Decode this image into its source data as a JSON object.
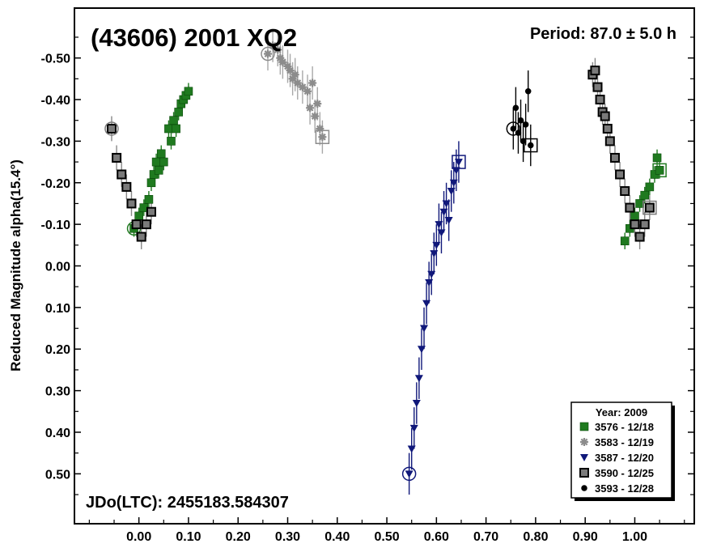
{
  "chart_data": {
    "type": "scatter",
    "title": "(43606) 2001 XQ2",
    "period_label": "Period: 87.0 ± 5.0 h",
    "jd_label": "JDo(LTC): 2455183.584307",
    "ylabel": "Reduced Magnitude alpha(15.4°)",
    "xlabel": "",
    "xlim": [
      -0.13,
      1.12
    ],
    "ylim": [
      0.62,
      -0.62
    ],
    "y_inverted": true,
    "x_ticks": [
      0.0,
      0.1,
      0.2,
      0.3,
      0.4,
      0.5,
      0.6,
      0.7,
      0.8,
      0.9,
      1.0
    ],
    "x_tick_labels": [
      "0.00",
      "0.10",
      "0.20",
      "0.30",
      "0.40",
      "0.50",
      "0.60",
      "0.70",
      "0.80",
      "0.90",
      "1.00"
    ],
    "y_ticks": [
      -0.5,
      -0.4,
      -0.3,
      -0.2,
      -0.1,
      0.0,
      0.1,
      0.2,
      0.3,
      0.4,
      0.5
    ],
    "y_tick_labels": [
      "-0.50",
      "-0.40",
      "-0.30",
      "-0.20",
      "-0.10",
      "0.00",
      "0.10",
      "0.20",
      "0.30",
      "0.40",
      "0.50"
    ],
    "grid": false,
    "legend": {
      "title": "Year: 2009",
      "position": "bottom-right",
      "entries": [
        "3576 - 12/18",
        "3583 - 12/19",
        "3587 - 12/20",
        "3590 - 12/25",
        "3593 - 12/28"
      ]
    },
    "series": [
      {
        "name": "3576 - 12/18",
        "color": "#1f7a1f",
        "marker": "square-filled",
        "x": [
          -0.01,
          0.0,
          0.01,
          0.02,
          0.025,
          0.03,
          0.035,
          0.04,
          0.045,
          0.05,
          0.06,
          0.065,
          0.07,
          0.075,
          0.08,
          0.085,
          0.09,
          0.095,
          0.1,
          0.98,
          0.99,
          1.0,
          1.01,
          1.02,
          1.03,
          1.04,
          1.045,
          1.05
        ],
        "y": [
          -0.09,
          -0.12,
          -0.14,
          -0.16,
          -0.2,
          -0.22,
          -0.25,
          -0.23,
          -0.27,
          -0.25,
          -0.33,
          -0.3,
          -0.35,
          -0.33,
          -0.37,
          -0.39,
          -0.4,
          -0.41,
          -0.42,
          -0.06,
          -0.09,
          -0.12,
          -0.15,
          -0.17,
          -0.19,
          -0.22,
          -0.26,
          -0.23
        ],
        "err": 0.02
      },
      {
        "name": "3583 - 12/19",
        "color": "#8c8c8c",
        "marker": "asterisk",
        "x": [
          0.26,
          0.27,
          0.28,
          0.285,
          0.29,
          0.3,
          0.305,
          0.31,
          0.315,
          0.32,
          0.33,
          0.34,
          0.345,
          0.35,
          0.355,
          0.36,
          0.365,
          0.37
        ],
        "y": [
          -0.51,
          -0.53,
          -0.52,
          -0.5,
          -0.49,
          -0.48,
          -0.47,
          -0.45,
          -0.46,
          -0.44,
          -0.43,
          -0.42,
          -0.38,
          -0.44,
          -0.36,
          -0.39,
          -0.33,
          -0.31
        ],
        "err": 0.04
      },
      {
        "name": "3587 - 12/20",
        "color": "#10187a",
        "marker": "triangle-down",
        "x": [
          0.545,
          0.55,
          0.555,
          0.56,
          0.565,
          0.57,
          0.575,
          0.58,
          0.585,
          0.59,
          0.595,
          0.6,
          0.605,
          0.61,
          0.615,
          0.62,
          0.625,
          0.63,
          0.635,
          0.64,
          0.645
        ],
        "y": [
          0.5,
          0.44,
          0.39,
          0.33,
          0.27,
          0.2,
          0.15,
          0.09,
          0.04,
          0.02,
          -0.03,
          -0.05,
          -0.1,
          -0.08,
          -0.13,
          -0.15,
          -0.11,
          -0.18,
          -0.2,
          -0.23,
          -0.25
        ],
        "err": 0.05
      },
      {
        "name": "3590 - 12/25",
        "color": "#7a7a7a",
        "marker": "square-gray",
        "x": [
          -0.055,
          -0.045,
          -0.035,
          -0.025,
          -0.015,
          -0.005,
          0.005,
          0.015,
          0.025,
          0.915,
          0.92,
          0.925,
          0.93,
          0.935,
          0.94,
          0.945,
          0.95,
          0.96,
          0.97,
          0.98,
          0.99,
          1.0,
          1.01,
          1.02,
          1.03
        ],
        "y": [
          -0.33,
          -0.26,
          -0.22,
          -0.19,
          -0.15,
          -0.1,
          -0.07,
          -0.1,
          -0.13,
          -0.46,
          -0.47,
          -0.43,
          -0.4,
          -0.37,
          -0.36,
          -0.33,
          -0.3,
          -0.26,
          -0.22,
          -0.18,
          -0.14,
          -0.1,
          -0.07,
          -0.1,
          -0.14
        ],
        "err": 0.03
      },
      {
        "name": "3593 - 12/28",
        "color": "#000000",
        "marker": "circle-filled",
        "x": [
          0.755,
          0.76,
          0.765,
          0.77,
          0.775,
          0.78,
          0.785,
          0.79
        ],
        "y": [
          -0.33,
          -0.38,
          -0.32,
          -0.35,
          -0.3,
          -0.34,
          -0.42,
          -0.29
        ],
        "err": 0.05
      }
    ]
  }
}
